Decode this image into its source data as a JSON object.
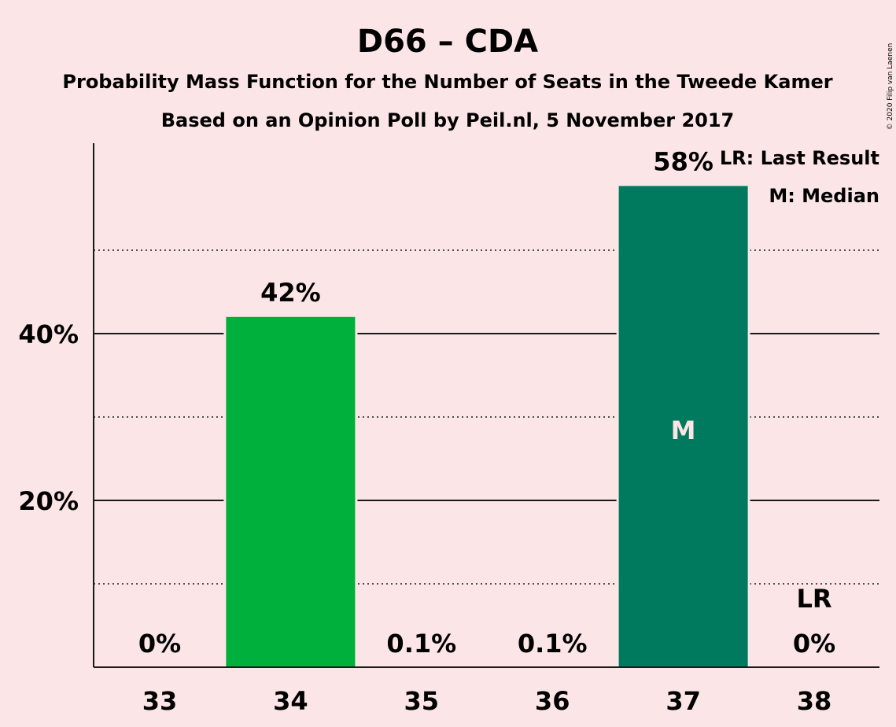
{
  "chart_data": {
    "type": "bar",
    "title": "D66 – CDA",
    "subtitle": "Probability Mass Function for the Number of Seats in the Tweede Kamer",
    "subtitle2": "Based on an Opinion Poll by Peil.nl, 5 November 2017",
    "copyright": "© 2020 Filip van Laenen",
    "categories": [
      "33",
      "34",
      "35",
      "36",
      "37",
      "38"
    ],
    "values": [
      0,
      42.0,
      0.1,
      0.1,
      57.7,
      0
    ],
    "value_labels": [
      "0%",
      "42%",
      "0.1%",
      "0.1%",
      "58%",
      "0%"
    ],
    "bar_colors": [
      "#00b03c",
      "#00b03c",
      "#00b03c",
      "#00b03c",
      "#007a5e",
      "#00b03c"
    ],
    "ylim": [
      0,
      62
    ],
    "yticks": [
      20,
      40
    ],
    "ytick_labels": [
      "20%",
      "40%"
    ],
    "minor_gridlines": [
      10,
      30,
      50
    ],
    "median_index": 4,
    "median_marker": "M",
    "last_result_index": 5,
    "last_result_marker": "LR",
    "legend": {
      "position": "top-right",
      "items": [
        "LR: Last Result",
        "M: Median"
      ]
    }
  }
}
